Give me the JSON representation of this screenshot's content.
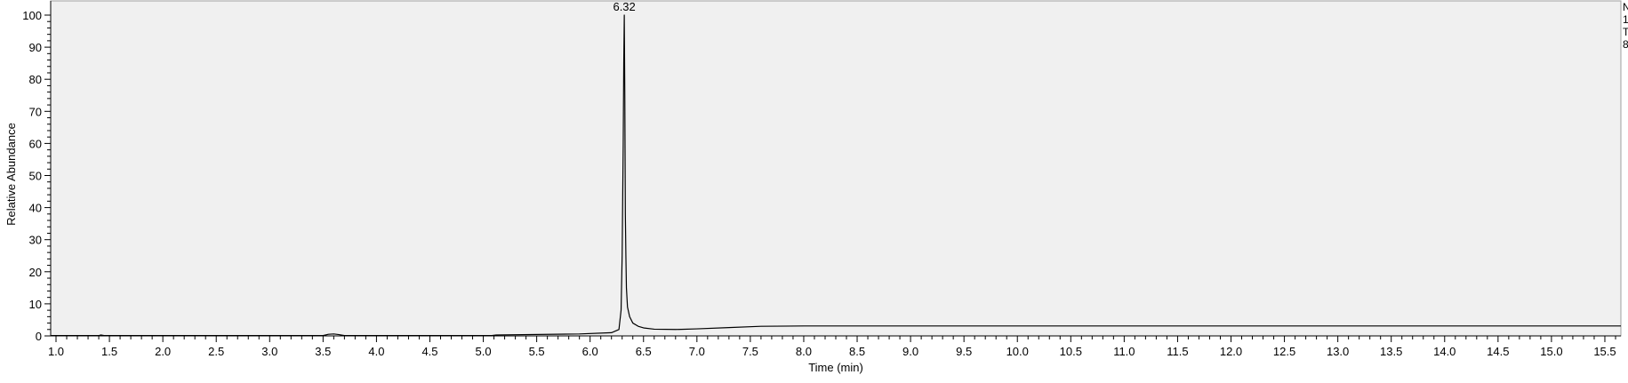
{
  "chart_data": {
    "type": "line",
    "title": "",
    "xlabel": "Time (min)",
    "ylabel": "Relative Abundance",
    "xlim": [
      0.95,
      15.65
    ],
    "ylim": [
      0,
      100
    ],
    "x_ticks": [
      "1.0",
      "1.5",
      "2.0",
      "2.5",
      "3.0",
      "3.5",
      "4.0",
      "4.5",
      "5.0",
      "5.5",
      "6.0",
      "6.5",
      "7.0",
      "7.5",
      "8.0",
      "8.5",
      "9.0",
      "9.5",
      "10.0",
      "10.5",
      "11.0",
      "11.5",
      "12.0",
      "12.5",
      "13.0",
      "13.5",
      "14.0",
      "14.5",
      "15.0",
      "15.5"
    ],
    "y_ticks": [
      "0",
      "10",
      "20",
      "30",
      "40",
      "50",
      "60",
      "70",
      "80",
      "90",
      "100"
    ],
    "grid": false,
    "annotations": [
      {
        "text": "6.32",
        "x": 6.32,
        "y": 100
      }
    ],
    "clipped_corner_text": [
      "N",
      "1",
      "T",
      "8"
    ],
    "colors": {
      "plot_bg": "#f0f0f0",
      "trace": "#000000"
    },
    "series": [
      {
        "x": [
          0.95,
          1.4,
          1.42,
          1.45,
          3.5,
          3.55,
          3.6,
          3.65,
          3.7,
          5.08,
          5.12,
          5.9,
          6.2,
          6.27,
          6.29,
          6.3,
          6.31,
          6.315,
          6.32,
          6.325,
          6.33,
          6.335,
          6.34,
          6.35,
          6.37,
          6.4,
          6.45,
          6.5,
          6.6,
          6.8,
          7.0,
          7.3,
          7.6,
          8.0,
          9.0,
          10.0,
          12.0,
          14.0,
          15.65
        ],
        "y": [
          0.1,
          0.1,
          0.3,
          0.1,
          0.1,
          0.5,
          0.6,
          0.4,
          0.1,
          0.1,
          0.3,
          0.6,
          1.0,
          2.0,
          8.0,
          25.0,
          60.0,
          85.0,
          100.0,
          75.0,
          38.0,
          25.0,
          15.0,
          9.0,
          6.0,
          4.0,
          3.0,
          2.5,
          2.1,
          2.0,
          2.2,
          2.6,
          3.0,
          3.1,
          3.1,
          3.1,
          3.1,
          3.1,
          3.1
        ]
      }
    ]
  }
}
